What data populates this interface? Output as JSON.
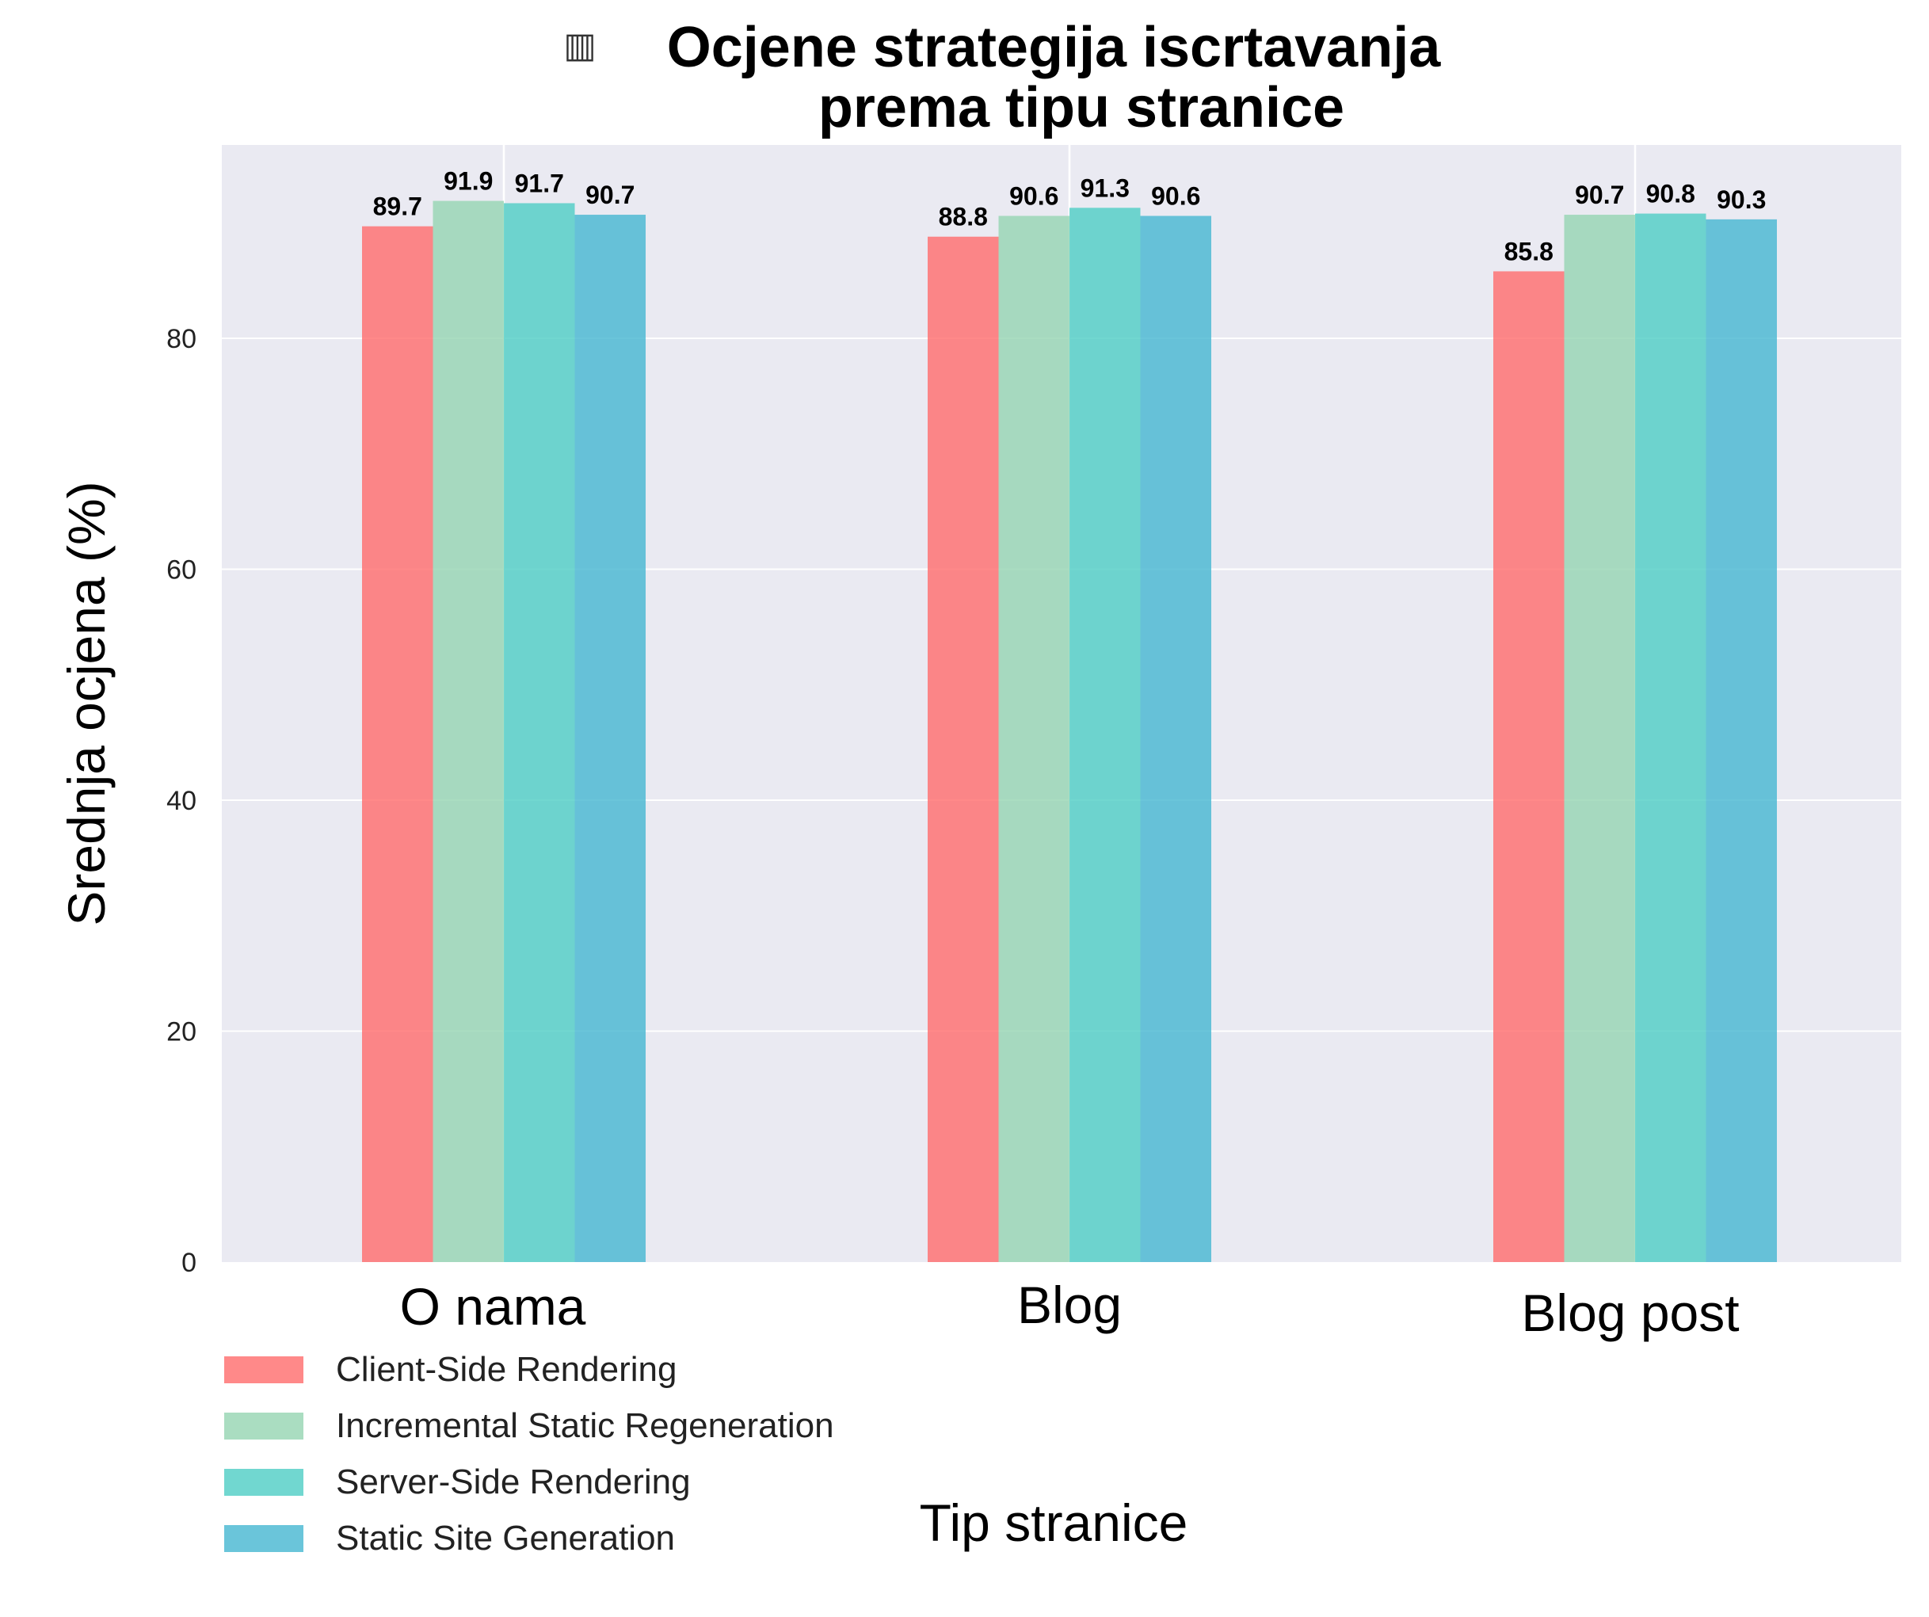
{
  "title_icon": "chart-icon",
  "chart_data": {
    "type": "bar",
    "title_line1": "Ocjene strategija iscrtavanja",
    "title_line2": "prema tipu stranice",
    "xlabel": "Tip stranice",
    "ylabel": "Srednja ocjena (%)",
    "ylim": [
      0,
      96.5
    ],
    "yticks": [
      0,
      20,
      40,
      60,
      80
    ],
    "categories": [
      "O nama",
      "Blog",
      "Blog post"
    ],
    "series": [
      {
        "name": "Client-Side Rendering",
        "color": "#ff6b6b",
        "values": [
          89.7,
          88.8,
          85.8
        ],
        "labels": [
          "89.7",
          "88.8",
          "85.8"
        ]
      },
      {
        "name": "Incremental Static Regeneration",
        "color": "#95d5b2",
        "values": [
          91.9,
          90.6,
          90.7
        ],
        "labels": [
          "91.9",
          "90.6",
          "90.7"
        ]
      },
      {
        "name": "Server-Side Rendering",
        "color": "#4ecdc4",
        "values": [
          91.7,
          91.3,
          90.8
        ],
        "labels": [
          "91.7",
          "91.3",
          "90.8"
        ]
      },
      {
        "name": "Static Site Generation",
        "color": "#45b7d1",
        "values": [
          90.7,
          90.6,
          90.3
        ],
        "labels": [
          "90.7",
          "90.6",
          "90.3"
        ]
      }
    ],
    "plot_background": "#eaeaf2",
    "grid": true,
    "legend_position": "bottom-left"
  }
}
